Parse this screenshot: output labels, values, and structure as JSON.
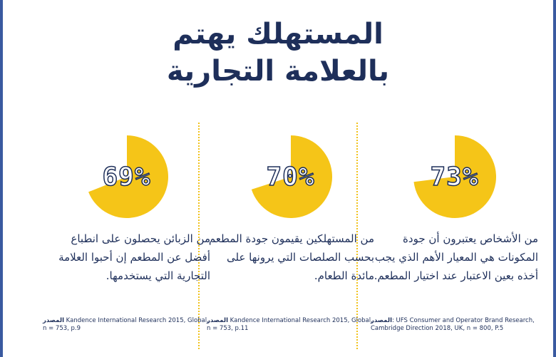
{
  "title": {
    "line1": "المستهلك يهتم",
    "line2": "بالعلامة التجارية"
  },
  "colors": {
    "yellow": "#f5c518",
    "navy": "#1e2f5a"
  },
  "stats": [
    {
      "percent_label": "73%",
      "percent_value": 73,
      "text": "من الأشخاص يعتبرون أن جودة المكونات هي المعيار الأهم الذي يجب أخذه بعين الاعتبار عند اختيار المطعم.",
      "source_label": "المصدر",
      "source": ": UFS Consumer and Operator Brand Research, Cambridge Direction 2018, UK, n = 800, P.5"
    },
    {
      "percent_label": "70%",
      "percent_value": 70,
      "text": "من المستهلكين يقيمون جودة المطعم بحسب الصلصات التي يرونها على مائدة الطعام.",
      "source_label": "المصدر",
      "source": " Kandence International Research 2015, Global, n = 753, p.11"
    },
    {
      "percent_label": "69%",
      "percent_value": 69,
      "text": "من الزبائن يحصلون على انطباع أفضل عن المطعم إن أحبوا العلامة التجارية التي يستخدمها.",
      "source_label": "المصدر",
      "source": " Kandence International Research 2015, Global, n = 753, p.9"
    }
  ]
}
